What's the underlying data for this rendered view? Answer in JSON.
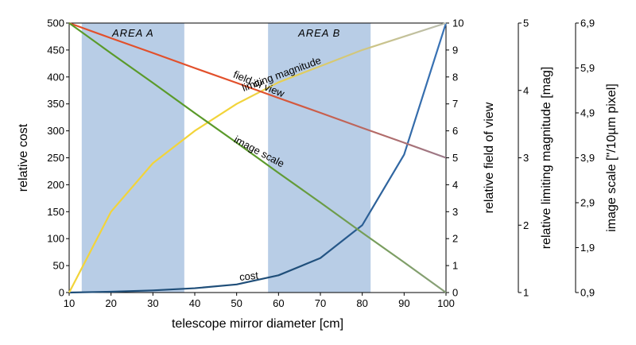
{
  "chart_data": {
    "type": "line",
    "x": [
      10,
      20,
      30,
      40,
      50,
      60,
      70,
      80,
      90,
      100
    ],
    "xlabel": "telescope mirror diameter [cm]",
    "xlim": [
      10,
      100
    ],
    "x_ticks": [
      "10",
      "20",
      "30",
      "40",
      "50",
      "60",
      "70",
      "80",
      "90",
      "100"
    ],
    "regions": [
      {
        "name": "AREA A",
        "x_from": 13,
        "x_to": 37.5
      },
      {
        "name": "AREA B",
        "x_from": 57.5,
        "x_to": 82
      }
    ],
    "axes": [
      {
        "id": "cost",
        "side": "left",
        "label": "relative cost",
        "ylim": [
          0,
          500
        ],
        "ticks": [
          "0",
          "50",
          "100",
          "150",
          "200",
          "250",
          "300",
          "350",
          "400",
          "450",
          "500"
        ]
      },
      {
        "id": "fov",
        "side": "right",
        "label": "relative field of view",
        "ylim": [
          0,
          10
        ],
        "ticks": [
          "0",
          "1",
          "2",
          "3",
          "4",
          "5",
          "6",
          "7",
          "8",
          "9",
          "10"
        ]
      },
      {
        "id": "mag",
        "side": "right",
        "label": "relative limiting magnitude [mag]",
        "ylim": [
          1,
          5
        ],
        "ticks": [
          "1",
          "2",
          "3",
          "4",
          "5"
        ]
      },
      {
        "id": "scale",
        "side": "right",
        "label": "image scale [\"/10µm pixel]",
        "ylim": [
          0.9,
          6.9
        ],
        "ticks": [
          "0,9",
          "1,9",
          "2,9",
          "3,9",
          "4,9",
          "5,9",
          "6,9"
        ]
      }
    ],
    "series": [
      {
        "name": "cost",
        "axis": "cost",
        "color": "#1f4e79",
        "gradient_end": "#3a74b8",
        "values": [
          0,
          1.5,
          4,
          8,
          15,
          32,
          64,
          125,
          256,
          500
        ]
      },
      {
        "name": "limiting magnitude",
        "axis": "cost",
        "color": "#f2d43a",
        "gradient_end": "#b8bcb0",
        "values": [
          0,
          150,
          240,
          300,
          350,
          390,
          420,
          450,
          475,
          500
        ]
      },
      {
        "name": "field of view",
        "axis": "fov",
        "color": "#e2502b",
        "gradient_end": "#9a7a8a",
        "values": [
          10,
          9.44,
          8.89,
          8.33,
          7.78,
          7.22,
          6.67,
          6.11,
          5.56,
          5.0
        ]
      },
      {
        "name": "image scale",
        "axis": "cost",
        "color": "#5a9a2a",
        "gradient_end": "#8aa07a",
        "values": [
          500,
          444,
          389,
          333,
          278,
          222,
          167,
          111,
          56,
          0
        ]
      }
    ]
  }
}
